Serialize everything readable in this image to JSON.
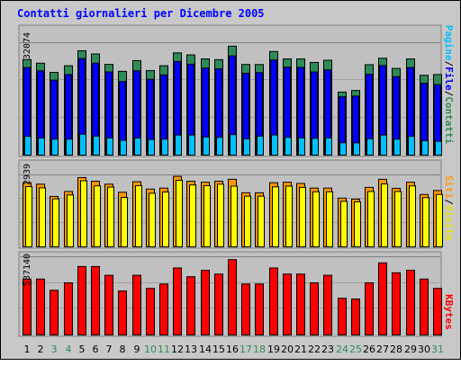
{
  "chart_data": {
    "type": "bar",
    "title": "Contatti giornalieri per Dicembre 2005",
    "categories": [
      "1",
      "2",
      "3",
      "4",
      "5",
      "6",
      "7",
      "8",
      "9",
      "10",
      "11",
      "12",
      "13",
      "14",
      "15",
      "16",
      "17",
      "18",
      "19",
      "20",
      "21",
      "22",
      "23",
      "24",
      "25",
      "26",
      "27",
      "28",
      "29",
      "30",
      "31"
    ],
    "weekend_categories": [
      "3",
      "4",
      "10",
      "11",
      "17",
      "18",
      "24",
      "25",
      "31"
    ],
    "panels": [
      {
        "id": "traffic",
        "ymax_label": "32074",
        "ylim": [
          0,
          32074
        ],
        "right_labels": [
          "Pagine",
          "File",
          "Contatti"
        ],
        "series": [
          {
            "name": "Contatti",
            "color": "#2e8b57",
            "values": [
              27250,
              26230,
              23600,
              25500,
              29770,
              28860,
              25900,
              23900,
              26960,
              24110,
              25500,
              29170,
              28600,
              27450,
              27240,
              31090,
              25870,
              25840,
              29570,
              27450,
              27450,
              26430,
              27070,
              17990,
              18440,
              25800,
              27650,
              24740,
              27450,
              22780,
              22990
            ]
          },
          {
            "name": "File",
            "color": "#0000ff",
            "values": [
              24980,
              24050,
              21380,
              22980,
              27550,
              26240,
              23730,
              21000,
              24050,
              21640,
              22880,
              26710,
              25950,
              24840,
              24620,
              28310,
              23360,
              23530,
              27140,
              25120,
              25020,
              23730,
              24330,
              16630,
              16850,
              23050,
              25540,
              22380,
              24980,
              20500,
              20100
            ]
          },
          {
            "name": "Pagine",
            "color": "#00bfff",
            "values": [
              5350,
              4900,
              4570,
              4570,
              5960,
              5410,
              4900,
              4230,
              4900,
              4450,
              4570,
              5740,
              5740,
              5200,
              5060,
              5860,
              4680,
              5410,
              5750,
              5060,
              4900,
              4780,
              4900,
              3530,
              3490,
              4680,
              5740,
              4570,
              5350,
              4110,
              3940
            ]
          }
        ]
      },
      {
        "id": "visits",
        "ymax_label": "2939",
        "ylim": [
          0,
          2939
        ],
        "right_labels": [
          "Siti",
          "Visite"
        ],
        "series": [
          {
            "name": "Visite",
            "color": "#ff9900",
            "values": [
              2620,
              2560,
              2060,
              2260,
              2830,
              2680,
              2560,
              2230,
              2660,
              2360,
              2400,
              2880,
              2680,
              2640,
              2680,
              2760,
              2210,
              2210,
              2620,
              2640,
              2590,
              2400,
              2400,
              1990,
              1950,
              2430,
              2760,
              2390,
              2640,
              2140,
              2300
            ]
          },
          {
            "name": "Siti",
            "color": "#ffff00",
            "values": [
              2460,
              2410,
              1960,
              2120,
              2700,
              2490,
              2440,
              2020,
              2500,
              2190,
              2240,
              2720,
              2530,
              2500,
              2560,
              2480,
              2070,
              2070,
              2450,
              2480,
              2430,
              2250,
              2250,
              1860,
              1840,
              2260,
              2570,
              2260,
              2490,
              2010,
              2140
            ]
          }
        ]
      },
      {
        "id": "kbytes",
        "ymax_label": "537140",
        "ylim": [
          0,
          537140
        ],
        "right_labels": [
          "KBytes"
        ],
        "series": [
          {
            "name": "KBytes",
            "color": "#ff0000",
            "values": [
              384000,
              384000,
              307000,
              358000,
              470000,
              470000,
              410000,
              302000,
              410000,
              320000,
              350000,
              460000,
              400000,
              444000,
              418000,
              517000,
              350000,
              350000,
              460000,
              418000,
              418000,
              358000,
              410000,
              252000,
              247000,
              358000,
              495000,
              427000,
              444000,
              384000,
              320000
            ]
          }
        ]
      }
    ]
  }
}
